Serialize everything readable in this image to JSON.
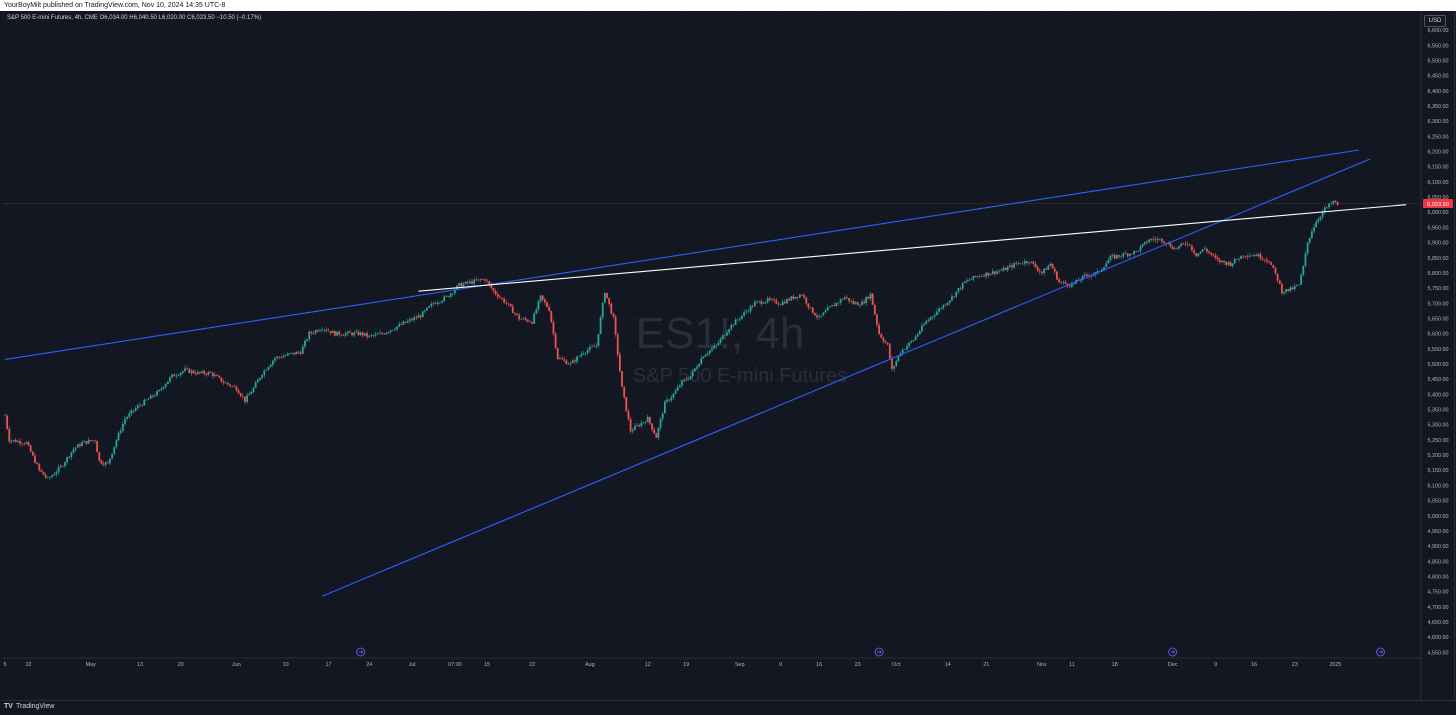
{
  "header": {
    "publisher": "YourBoyMilt published on TradingView.com, Nov 10, 2024 14:35 UTC-8"
  },
  "legend": {
    "symbol": "S&P 500 E-mini Futures, 4h, CME",
    "ohlc": "O6,034.00  H6,040.50  L6,020.00  C6,023.50  −10.50 (−0.17%)"
  },
  "currency": "USD",
  "watermark": {
    "ticker": "ES1!, 4h",
    "name": "S&P 500 E-mini Futures"
  },
  "footer": {
    "brand": "TradingView",
    "logo": "TV"
  },
  "colors": {
    "up": "#26a69a",
    "down": "#ef5350",
    "trendline_blue": "#2962ff",
    "trendline_white": "#ffffff",
    "price_label": "#f23645",
    "event_icon": "#7b5cff"
  },
  "chart_data": {
    "type": "candlestick",
    "timeframe": "4h",
    "last_price": "6,023.50",
    "ylim": [
      4500,
      6650
    ],
    "y_tick_labels": [
      "4,550.00",
      "4,600.00",
      "4,650.00",
      "4,700.00",
      "4,750.00",
      "4,800.00",
      "4,850.00",
      "4,900.00",
      "4,950.00",
      "5,000.00",
      "5,050.00",
      "5,100.00",
      "5,150.00",
      "5,200.00",
      "5,250.00",
      "5,300.00",
      "5,350.00",
      "5,400.00",
      "5,450.00",
      "5,500.00",
      "5,550.00",
      "5,600.00",
      "5,650.00",
      "5,700.00",
      "5,750.00",
      "5,800.00",
      "5,850.00",
      "5,900.00",
      "5,950.00",
      "6,000.00",
      "6,050.00",
      "6,100.00",
      "6,150.00",
      "6,200.00",
      "6,250.00",
      "6,300.00",
      "6,350.00",
      "6,400.00",
      "6,450.00",
      "6,500.00",
      "6,550.00",
      "6,600.00"
    ],
    "x_tick_labels": [
      "5",
      "22",
      "May",
      "13",
      "20",
      "Jun",
      "10",
      "17",
      "24",
      "Jul",
      "07:00",
      "15",
      "22",
      "Aug",
      "12",
      "19",
      "Sep",
      "9",
      "16",
      "23",
      "Oct",
      "14",
      "21",
      "Nov",
      "11",
      "18",
      "Dec",
      "9",
      "16",
      "23",
      "2025"
    ],
    "x_tick_index": [
      0,
      11,
      40,
      63,
      82,
      108,
      131,
      151,
      170,
      190,
      210,
      225,
      246,
      273,
      300,
      318,
      343,
      362,
      380,
      398,
      416,
      440,
      458,
      484,
      498,
      518,
      545,
      565,
      583,
      602,
      621
    ],
    "price_path": [
      [
        0,
        5330
      ],
      [
        2,
        5250
      ],
      [
        10,
        5240
      ],
      [
        16,
        5150
      ],
      [
        20,
        5120
      ],
      [
        26,
        5160
      ],
      [
        32,
        5220
      ],
      [
        36,
        5240
      ],
      [
        42,
        5250
      ],
      [
        44,
        5180
      ],
      [
        48,
        5170
      ],
      [
        52,
        5250
      ],
      [
        56,
        5320
      ],
      [
        62,
        5360
      ],
      [
        66,
        5380
      ],
      [
        72,
        5410
      ],
      [
        74,
        5430
      ],
      [
        78,
        5460
      ],
      [
        84,
        5480
      ],
      [
        90,
        5470
      ],
      [
        96,
        5470
      ],
      [
        102,
        5440
      ],
      [
        108,
        5420
      ],
      [
        112,
        5380
      ],
      [
        116,
        5420
      ],
      [
        120,
        5470
      ],
      [
        126,
        5520
      ],
      [
        132,
        5530
      ],
      [
        138,
        5540
      ],
      [
        142,
        5600
      ],
      [
        148,
        5620
      ],
      [
        154,
        5600
      ],
      [
        160,
        5600
      ],
      [
        166,
        5600
      ],
      [
        170,
        5590
      ],
      [
        176,
        5600
      ],
      [
        182,
        5620
      ],
      [
        188,
        5640
      ],
      [
        194,
        5660
      ],
      [
        200,
        5700
      ],
      [
        206,
        5720
      ],
      [
        212,
        5760
      ],
      [
        218,
        5770
      ],
      [
        224,
        5780
      ],
      [
        228,
        5740
      ],
      [
        234,
        5700
      ],
      [
        240,
        5650
      ],
      [
        246,
        5640
      ],
      [
        250,
        5720
      ],
      [
        254,
        5680
      ],
      [
        258,
        5520
      ],
      [
        264,
        5500
      ],
      [
        270,
        5540
      ],
      [
        276,
        5560
      ],
      [
        280,
        5740
      ],
      [
        284,
        5650
      ],
      [
        288,
        5420
      ],
      [
        292,
        5280
      ],
      [
        296,
        5300
      ],
      [
        300,
        5320
      ],
      [
        304,
        5260
      ],
      [
        308,
        5370
      ],
      [
        312,
        5400
      ],
      [
        316,
        5440
      ],
      [
        320,
        5460
      ],
      [
        326,
        5530
      ],
      [
        332,
        5560
      ],
      [
        338,
        5620
      ],
      [
        344,
        5660
      ],
      [
        350,
        5700
      ],
      [
        356,
        5710
      ],
      [
        362,
        5700
      ],
      [
        368,
        5720
      ],
      [
        372,
        5730
      ],
      [
        376,
        5680
      ],
      [
        380,
        5650
      ],
      [
        384,
        5680
      ],
      [
        388,
        5700
      ],
      [
        392,
        5720
      ],
      [
        396,
        5700
      ],
      [
        400,
        5700
      ],
      [
        404,
        5730
      ],
      [
        408,
        5600
      ],
      [
        412,
        5560
      ],
      [
        414,
        5480
      ],
      [
        418,
        5540
      ],
      [
        424,
        5580
      ],
      [
        430,
        5640
      ],
      [
        436,
        5680
      ],
      [
        442,
        5720
      ],
      [
        448,
        5770
      ],
      [
        454,
        5790
      ],
      [
        460,
        5800
      ],
      [
        466,
        5810
      ],
      [
        472,
        5830
      ],
      [
        478,
        5840
      ],
      [
        484,
        5800
      ],
      [
        488,
        5830
      ],
      [
        492,
        5770
      ],
      [
        498,
        5760
      ],
      [
        504,
        5790
      ],
      [
        510,
        5800
      ],
      [
        516,
        5850
      ],
      [
        522,
        5860
      ],
      [
        528,
        5870
      ],
      [
        534,
        5910
      ],
      [
        540,
        5910
      ],
      [
        546,
        5880
      ],
      [
        552,
        5900
      ],
      [
        556,
        5860
      ],
      [
        560,
        5880
      ],
      [
        566,
        5840
      ],
      [
        572,
        5830
      ],
      [
        578,
        5860
      ],
      [
        584,
        5860
      ],
      [
        590,
        5840
      ],
      [
        594,
        5780
      ],
      [
        596,
        5740
      ],
      [
        600,
        5745
      ],
      [
        604,
        5760
      ],
      [
        606,
        5820
      ],
      [
        608,
        5900
      ],
      [
        610,
        5940
      ],
      [
        612,
        5970
      ],
      [
        614,
        5990
      ],
      [
        616,
        6010
      ],
      [
        620,
        6034
      ],
      [
        622,
        6023.5
      ]
    ],
    "trendlines": [
      {
        "color": "blue",
        "from": [
          0,
          5515
        ],
        "to": [
          632,
          6205
        ]
      },
      {
        "color": "blue",
        "from": [
          148,
          4735
        ],
        "to": [
          637,
          6175
        ]
      },
      {
        "color": "white",
        "from": [
          193,
          5740
        ],
        "to": [
          654,
          6025
        ]
      }
    ],
    "event_markers": [
      {
        "x": 166,
        "type": "dividend-arrow"
      },
      {
        "x": 408,
        "type": "dividend-arrow"
      },
      {
        "x": 545,
        "type": "earnings-flag"
      },
      {
        "x": 642,
        "type": "dividend-arrow"
      }
    ],
    "grid": true
  }
}
